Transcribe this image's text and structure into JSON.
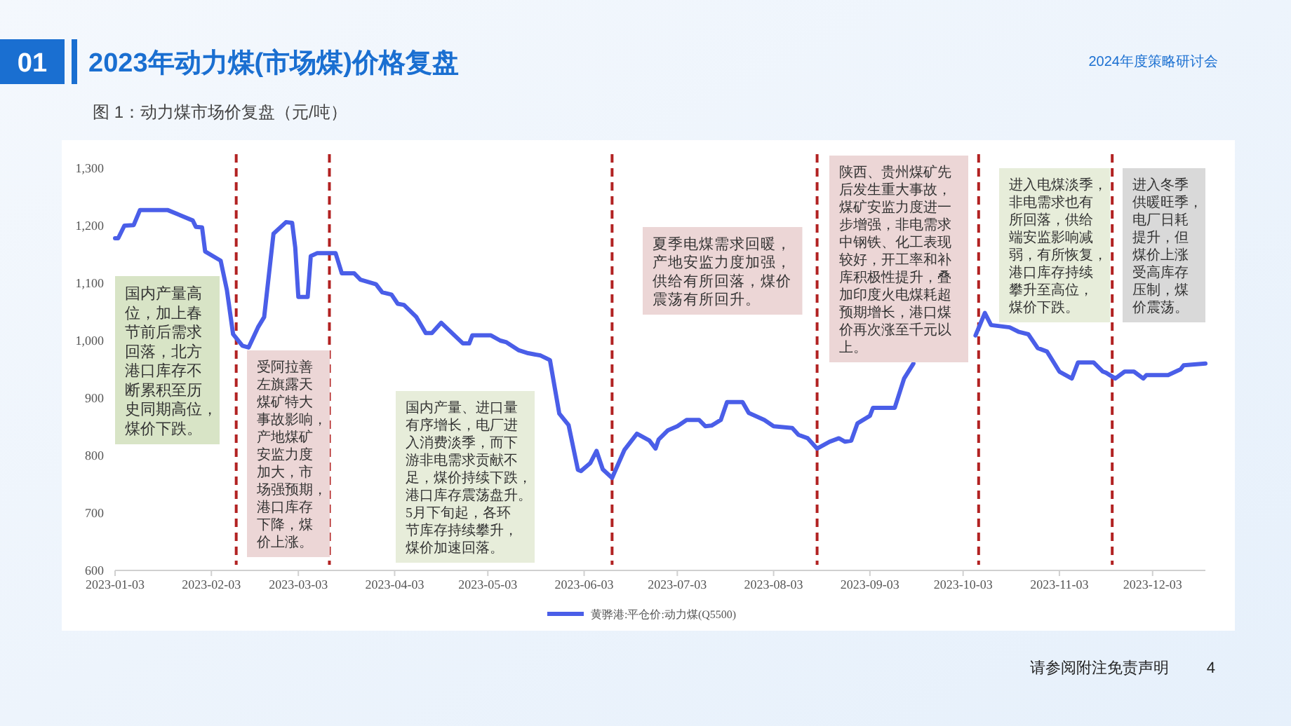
{
  "chart_data": {
    "type": "line",
    "title": "2023年动力煤(市场煤)价格复盘",
    "subtitle": "图 1：动力煤市场价复盘（元/吨）",
    "x": [
      "2023-01-03",
      "2023-01-04",
      "2023-01-06",
      "2023-01-09",
      "2023-01-11",
      "2023-01-20",
      "2023-01-28",
      "2023-01-29",
      "2023-01-31",
      "2023-02-01",
      "2023-02-06",
      "2023-02-08",
      "2023-02-10",
      "2023-02-13",
      "2023-02-15",
      "2023-02-18",
      "2023-02-20",
      "2023-02-23",
      "2023-02-27",
      "2023-03-01",
      "2023-03-02",
      "2023-03-03",
      "2023-03-06",
      "2023-03-07",
      "2023-03-09",
      "2023-03-15",
      "2023-03-17",
      "2023-03-21",
      "2023-03-23",
      "2023-03-28",
      "2023-03-30",
      "2023-04-02",
      "2023-04-04",
      "2023-04-06",
      "2023-04-10",
      "2023-04-13",
      "2023-04-15",
      "2023-04-18",
      "2023-04-25",
      "2023-04-27",
      "2023-04-28",
      "2023-05-04",
      "2023-05-07",
      "2023-05-09",
      "2023-05-13",
      "2023-05-16",
      "2023-05-20",
      "2023-05-23",
      "2023-05-26",
      "2023-05-29",
      "2023-06-01",
      "2023-06-02",
      "2023-06-05",
      "2023-06-07",
      "2023-06-09",
      "2023-06-12",
      "2023-06-16",
      "2023-06-20",
      "2023-06-24",
      "2023-06-26",
      "2023-06-27",
      "2023-06-30",
      "2023-07-03",
      "2023-07-06",
      "2023-07-10",
      "2023-07-12",
      "2023-07-14",
      "2023-07-17",
      "2023-07-19",
      "2023-07-24",
      "2023-07-26",
      "2023-07-31",
      "2023-08-03",
      "2023-08-09",
      "2023-08-11",
      "2023-08-14",
      "2023-08-17",
      "2023-08-21",
      "2023-08-24",
      "2023-08-26",
      "2023-08-28",
      "2023-08-30",
      "2023-09-03",
      "2023-09-04",
      "2023-09-11",
      "2023-09-14",
      "2023-09-17",
      "2023-09-27",
      "2023-10-07",
      "2023-10-10",
      "2023-10-12",
      "2023-10-18",
      "2023-10-21",
      "2023-10-24",
      "2023-10-27",
      "2023-10-30",
      "2023-11-03",
      "2023-11-07",
      "2023-11-09",
      "2023-11-14",
      "2023-11-17",
      "2023-11-18",
      "2023-11-21",
      "2023-11-24",
      "2023-11-27",
      "2023-11-30",
      "2023-12-01",
      "2023-12-08",
      "2023-12-12",
      "2023-12-13",
      "2023-12-20"
    ],
    "series": [
      {
        "name": "黄骅港:平仓价:动力煤(Q5500)",
        "color": "#4a5ee8",
        "values": [
          1178,
          1178,
          1200,
          1201,
          1227,
          1227,
          1209,
          1198,
          1197,
          1155,
          1139,
          1088,
          1011,
          991,
          988,
          1023,
          1041,
          1186,
          1206,
          1205,
          1162,
          1076,
          1076,
          1147,
          1152,
          1152,
          1117,
          1117,
          1106,
          1098,
          1084,
          1080,
          1064,
          1062,
          1041,
          1013,
          1013,
          1031,
          995,
          995,
          1009,
          1009,
          1000,
          997,
          983,
          978,
          974,
          966,
          873,
          853,
          775,
          773,
          787,
          808,
          776,
          761,
          810,
          838,
          826,
          812,
          828,
          844,
          851,
          862,
          862,
          851,
          852,
          862,
          893,
          893,
          874,
          862,
          851,
          848,
          836,
          830,
          812,
          824,
          830,
          824,
          826,
          856,
          869,
          883,
          883,
          934,
          960,
          null,
          1009,
          1048,
          1027,
          1023,
          1015,
          1011,
          987,
          981,
          946,
          934,
          962,
          962,
          946,
          944,
          934,
          946,
          946,
          934,
          940,
          940,
          950,
          957,
          960
        ]
      }
    ],
    "xlim": [
      "2023-01-03",
      "2023-12-20"
    ],
    "xticks": [
      "2023-01-03",
      "2023-02-03",
      "2023-03-03",
      "2023-04-03",
      "2023-05-03",
      "2023-06-03",
      "2023-07-03",
      "2023-08-03",
      "2023-09-03",
      "2023-10-03",
      "2023-11-03",
      "2023-12-03"
    ],
    "ylim": [
      600,
      1300
    ],
    "yticks": [
      {
        "value": 600,
        "label": "600"
      },
      {
        "value": 700,
        "label": "700"
      },
      {
        "value": 800,
        "label": "800"
      },
      {
        "value": 900,
        "label": "900"
      },
      {
        "value": 1000,
        "label": "1,000"
      },
      {
        "value": 1100,
        "label": "1,100"
      },
      {
        "value": 1200,
        "label": "1,200"
      },
      {
        "value": 1300,
        "label": "1,300"
      }
    ],
    "ref_lines": [
      {
        "axis": "x",
        "value": "2023-02-11",
        "color": "#b22222",
        "line_style": "dashed"
      },
      {
        "axis": "x",
        "value": "2023-03-13",
        "color": "#b22222",
        "line_style": "dashed"
      },
      {
        "axis": "x",
        "value": "2023-06-12",
        "color": "#b22222",
        "line_style": "dashed"
      },
      {
        "axis": "x",
        "value": "2023-08-17",
        "color": "#b22222",
        "line_style": "dashed"
      },
      {
        "axis": "x",
        "value": "2023-10-08",
        "color": "#b22222",
        "line_style": "dashed"
      },
      {
        "axis": "x",
        "value": "2023-11-20",
        "color": "#b22222",
        "line_style": "dashed"
      }
    ],
    "annotations": [
      "国内产量高位，加上春节前后需求回落，北方港口库存不断累积至历史同期高位，煤价下跌。",
      "受阿拉善左旗露天煤矿特大事故影响，产地煤矿安监力度加大，市场强预期，港口库存下降，煤价上涨。",
      "国内产量、进口量有序增长，电厂进入消费淡季，而下游非电需求贡献不足，煤价持续下跌，港口库存震荡盘升。5月下旬起，各环节库存持续攀升，煤价加速回落。",
      "夏季电煤需求回暖，产地安监力度加强，供给有所回落，煤价震荡有所回升。",
      "陕西、贵州煤矿先后发生重大事故，煤矿安监力度进一步增强，非电需求中钢铁、化工表现较好，开工率和补库积极性提升，叠加印度火电煤耗超预期增长，港口煤价再次涨至千元以上。",
      "进入电煤淡季，非电需求也有所回落，供给端安监影响减弱，有所恢复，港口库存持续攀升至高位，煤价下跌。",
      "进入冬季供暖旺季，电厂日耗提升，但煤价上涨受高库存压制，煤价震荡。",
      "01",
      "2024年度策略研讨会",
      "请参阅附注免责声明",
      "4"
    ],
    "grid": false,
    "legend": "bottom",
    "marker": "none",
    "line_style": "solid"
  }
}
